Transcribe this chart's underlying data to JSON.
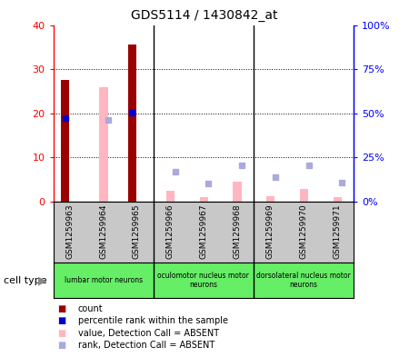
{
  "title": "GDS5114 / 1430842_at",
  "samples": [
    "GSM1259963",
    "GSM1259964",
    "GSM1259965",
    "GSM1259966",
    "GSM1259967",
    "GSM1259968",
    "GSM1259969",
    "GSM1259970",
    "GSM1259971"
  ],
  "count_values": [
    27.5,
    0,
    35.5,
    0,
    0,
    0,
    0,
    0,
    0
  ],
  "percentile_rank_left": [
    19.0,
    0,
    20.2,
    0,
    0,
    0,
    0,
    0,
    0
  ],
  "value_absent": [
    0,
    26.0,
    0,
    2.5,
    1.0,
    4.5,
    1.2,
    2.8,
    1.0
  ],
  "rank_absent_left": [
    0,
    18.5,
    0,
    0,
    0,
    0,
    0,
    0,
    0
  ],
  "rank_absent_right": [
    0,
    0,
    0,
    6.8,
    4.2,
    8.3,
    5.5,
    8.2,
    4.3
  ],
  "ylim_left": [
    0,
    40
  ],
  "ylim_right": [
    0,
    100
  ],
  "yticks_left": [
    0,
    10,
    20,
    30,
    40
  ],
  "yticks_right": [
    0,
    25,
    50,
    75,
    100
  ],
  "ytick_labels_left": [
    "0",
    "10",
    "20",
    "30",
    "40"
  ],
  "ytick_labels_right": [
    "0%",
    "25%",
    "50%",
    "75%",
    "100%"
  ],
  "color_count": "#990000",
  "color_percentile": "#0000CC",
  "color_value_absent": "#FFB6C1",
  "color_rank_absent": "#AAAADD",
  "cell_type_groups": [
    {
      "label": "lumbar motor neurons",
      "start": 0,
      "end": 3
    },
    {
      "label": "oculomotor nucleus motor\nneurons",
      "start": 3,
      "end": 6
    },
    {
      "label": "dorsolateral nucleus motor\nneurons",
      "start": 6,
      "end": 9
    }
  ],
  "group_boundaries": [
    3,
    6
  ],
  "legend_items": [
    {
      "label": "count",
      "color": "#990000"
    },
    {
      "label": "percentile rank within the sample",
      "color": "#0000CC"
    },
    {
      "label": "value, Detection Call = ABSENT",
      "color": "#FFB6C1"
    },
    {
      "label": "rank, Detection Call = ABSENT",
      "color": "#AAAADD"
    }
  ],
  "bar_width": 0.25,
  "cell_type_label": "cell type",
  "gray_color": "#C8C8C8",
  "green_color": "#66EE66"
}
